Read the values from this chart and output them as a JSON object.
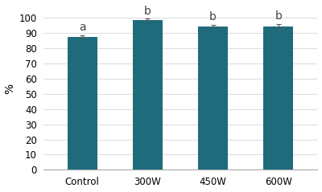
{
  "categories": [
    "Control",
    "300W",
    "450W",
    "600W"
  ],
  "values": [
    87.5,
    98.5,
    94.5,
    94.2
  ],
  "errors": [
    1.2,
    0.8,
    1.0,
    1.5
  ],
  "significance": [
    "a",
    "b",
    "b",
    "b"
  ],
  "bar_color": "#1f6b7c",
  "ylabel": "%",
  "ylim": [
    0,
    107
  ],
  "yticks": [
    0,
    10,
    20,
    30,
    40,
    50,
    60,
    70,
    80,
    90,
    100
  ],
  "background_color": "#ffffff",
  "grid_color": "#dddddd",
  "bar_width": 0.45,
  "sig_fontsize": 10,
  "ylabel_fontsize": 10,
  "tick_fontsize": 8.5
}
